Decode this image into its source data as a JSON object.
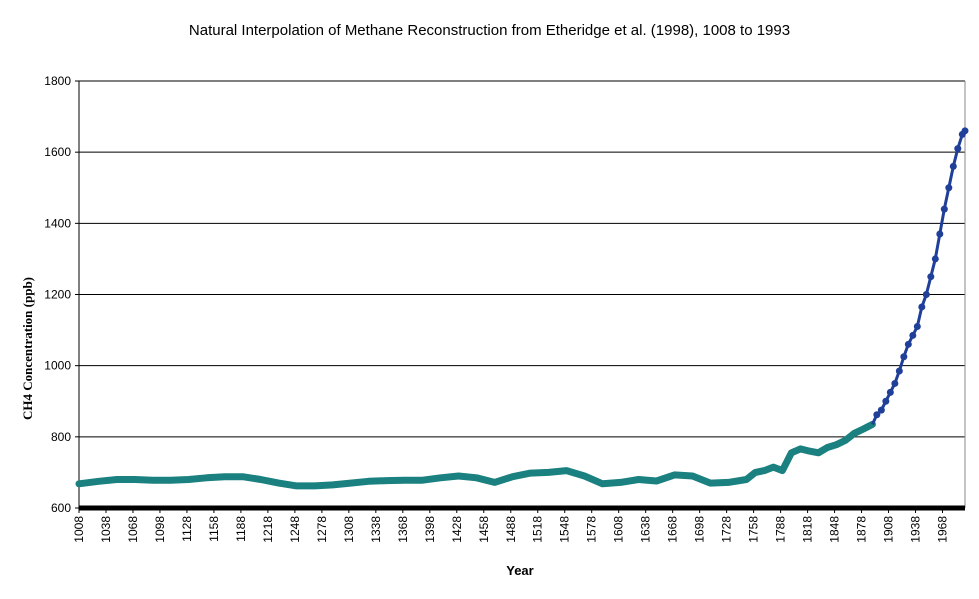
{
  "chart_data": {
    "type": "line",
    "title": "Natural Interpolation of Methane Reconstruction from Etheridge et al. (1998), 1008 to 1993",
    "xlabel": "Year",
    "ylabel": "CH4 Concentration (ppb)",
    "xlim": [
      1008,
      1993
    ],
    "ylim": [
      600,
      1800
    ],
    "y_ticks": [
      600,
      800,
      1000,
      1200,
      1400,
      1600,
      1800
    ],
    "x_ticks": [
      1008,
      1038,
      1068,
      1098,
      1128,
      1158,
      1188,
      1218,
      1248,
      1278,
      1308,
      1338,
      1368,
      1398,
      1428,
      1458,
      1488,
      1518,
      1548,
      1578,
      1608,
      1638,
      1668,
      1698,
      1728,
      1758,
      1788,
      1818,
      1848,
      1878,
      1908,
      1938,
      1968
    ],
    "grid": "horizontal",
    "legend": "none",
    "colors": {
      "interpolated": "#1b8080",
      "recent": "#1f3f99",
      "baseline": "#000000"
    },
    "series": [
      {
        "x": [
          1008,
          1030,
          1050,
          1070,
          1090,
          1110,
          1130,
          1150,
          1170,
          1190,
          1210,
          1230,
          1250,
          1270,
          1290,
          1310,
          1330,
          1350,
          1370,
          1390,
          1410,
          1430,
          1450,
          1470,
          1490,
          1510,
          1530,
          1550,
          1570,
          1590,
          1610,
          1630,
          1650,
          1670,
          1690,
          1710,
          1730,
          1750,
          1760,
          1770,
          1780,
          1790,
          1800,
          1810,
          1820,
          1830,
          1840,
          1850,
          1860,
          1870,
          1880,
          1890
        ],
        "values": [
          668,
          675,
          680,
          680,
          678,
          678,
          680,
          685,
          688,
          688,
          680,
          670,
          662,
          662,
          665,
          670,
          675,
          677,
          678,
          678,
          685,
          690,
          685,
          672,
          688,
          698,
          700,
          705,
          690,
          668,
          672,
          680,
          676,
          693,
          690,
          670,
          672,
          680,
          700,
          705,
          715,
          705,
          755,
          766,
          760,
          755,
          770,
          778,
          790,
          810,
          822,
          835
        ]
      },
      {
        "x": [
          1895,
          1900,
          1905,
          1910,
          1915,
          1920,
          1925,
          1930,
          1935,
          1940,
          1945,
          1950,
          1955,
          1960,
          1965,
          1970,
          1975,
          1980,
          1985,
          1990,
          1993
        ],
        "values": [
          862,
          875,
          900,
          925,
          950,
          985,
          1025,
          1060,
          1085,
          1110,
          1165,
          1200,
          1250,
          1300,
          1370,
          1440,
          1500,
          1560,
          1610,
          1650,
          1660
        ]
      }
    ]
  }
}
